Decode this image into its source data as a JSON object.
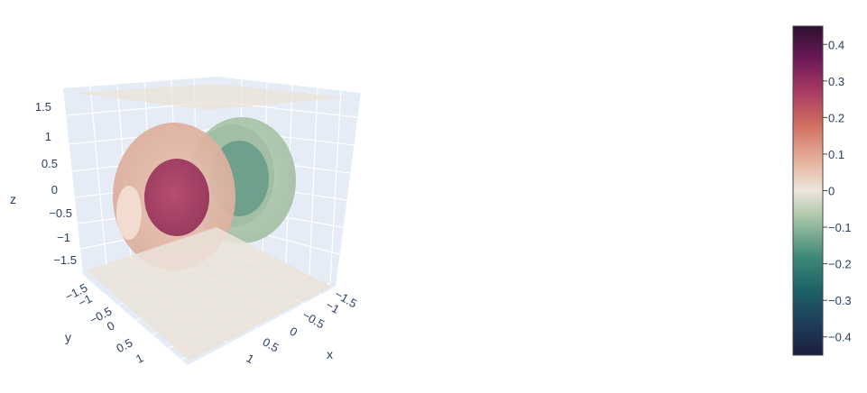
{
  "chart_data": {
    "type": "isosurface-3d",
    "title": "",
    "scene": {
      "x": {
        "label": "x",
        "ticks": [
          "−1.5",
          "−1",
          "−0.5",
          "0",
          "0.5",
          "1"
        ]
      },
      "y": {
        "label": "y",
        "ticks": [
          "−1.5",
          "−1",
          "−0.5",
          "0",
          "0.5",
          "1"
        ]
      },
      "z": {
        "label": "z",
        "ticks": [
          "1.5",
          "1",
          "0.5",
          "0",
          "−0.5",
          "−1",
          "−1.5"
        ]
      },
      "range": [
        -1.5,
        1.5
      ],
      "background": "#e5ecf6",
      "grid": true
    },
    "surfaces": [
      {
        "value": 0.3,
        "shape": "lobe",
        "position": "upper-left",
        "color": "#a23a62"
      },
      {
        "value": 0.1,
        "shape": "lobe",
        "position": "upper-left",
        "color": "#e1b4a2"
      },
      {
        "value": -0.1,
        "shape": "lobe",
        "position": "upper-right",
        "color": "#a8c4a8"
      },
      {
        "value": -0.2,
        "shape": "lobe",
        "position": "upper-right",
        "color": "#5e9584"
      },
      {
        "value": 0.0,
        "shape": "plane",
        "position": "top",
        "color": "#e9e3da"
      },
      {
        "value": 0.0,
        "shape": "plane",
        "position": "bottom",
        "color": "#e9e3da"
      }
    ],
    "colorbar": {
      "min": -0.45,
      "max": 0.45,
      "ticks": [
        0.4,
        0.3,
        0.2,
        0.1,
        0,
        -0.1,
        -0.2,
        -0.3,
        -0.4
      ],
      "tick_labels": [
        "0.4",
        "0.3",
        "0.2",
        "0.1",
        "0",
        "−0.1",
        "−0.2",
        "−0.3",
        "−0.4"
      ],
      "colorscale": [
        [
          0.0,
          "#1a1f3d"
        ],
        [
          0.1,
          "#1e3e5c"
        ],
        [
          0.2,
          "#1d6366"
        ],
        [
          0.3,
          "#3e8a78"
        ],
        [
          0.42,
          "#a9c7a7"
        ],
        [
          0.5,
          "#ebe5dc"
        ],
        [
          0.58,
          "#e7b8a3"
        ],
        [
          0.7,
          "#cf6f5f"
        ],
        [
          0.8,
          "#a83b62"
        ],
        [
          0.9,
          "#6c1958"
        ],
        [
          1.0,
          "#2c0f2e"
        ]
      ]
    }
  }
}
